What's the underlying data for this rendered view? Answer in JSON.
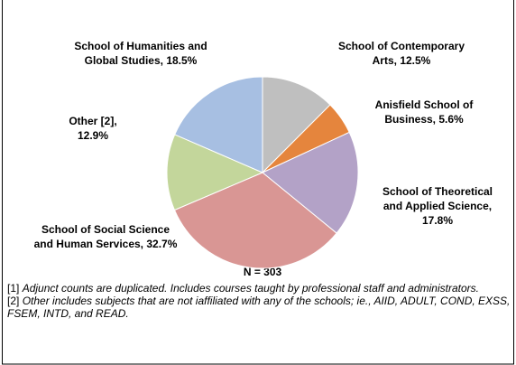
{
  "chart_data": {
    "type": "pie",
    "values": [
      12.5,
      5.6,
      17.8,
      32.7,
      12.9,
      18.5
    ],
    "value_labels": [
      [
        "School of Contemporary",
        "Arts, 12.5%"
      ],
      [
        "Anisfield School of",
        "Business, 5.6%"
      ],
      [
        "School of Theoretical",
        "and Applied Science,",
        "17.8%"
      ],
      [
        "School of Social Science",
        "and Human Services, 32.7%"
      ],
      [
        "Other [2],",
        "12.9%"
      ],
      [
        "School of Humanities and",
        "Global Studies, 18.5%"
      ]
    ],
    "colors": [
      "#bfbfbf",
      "#e5853d",
      "#b3a2c7",
      "#d99694",
      "#c3d69b",
      "#a7bfe2"
    ],
    "annotations": [
      "N =  303"
    ],
    "footnotes": [
      {
        "marker": "[1]",
        "text": "Adjunct counts are duplicated. Includes courses taught by professional staff and administrators."
      },
      {
        "marker": "[2]",
        "text": "Other includes subjects that are not iaffiliated with any of the schools;  ie., AIID, ADULT, COND, EXSS, FSEM, INTD, and READ."
      }
    ]
  }
}
